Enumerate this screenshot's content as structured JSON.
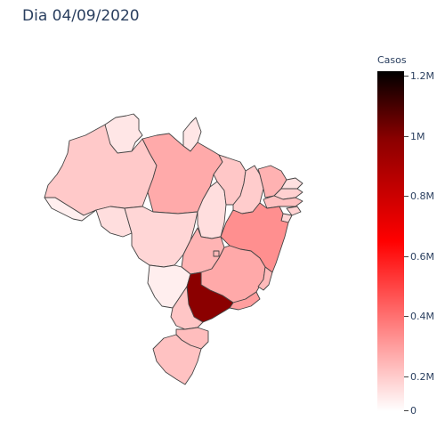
{
  "title": "Dia 04/09/2020",
  "colorbar": {
    "title": "Casos",
    "ticks": [
      "1.2M",
      "1M",
      "0.8M",
      "0.6M",
      "0.4M",
      "0.2M",
      "0"
    ]
  },
  "colors": {
    "scale_low": "#ffffff",
    "scale_mid": "#ff0000",
    "scale_high": "#000000"
  }
}
